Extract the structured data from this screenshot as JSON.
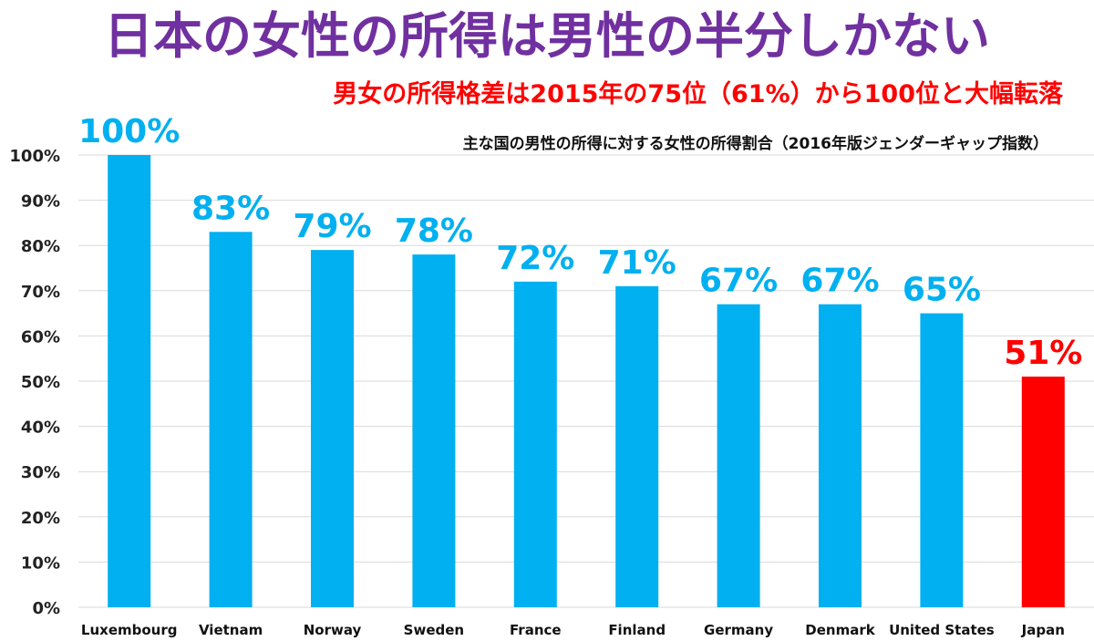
{
  "header": {
    "title": "日本の女性の所得は男性の半分しかない",
    "subtitle": "男女の所得格差は2015年の75位（61%）から100位と大幅転落",
    "note": "主な国の男性の所得に対する女性の所得割合（2016年版ジェンダーギャップ指数）"
  },
  "colors": {
    "title": "#7030a0",
    "subtitle": "#ff0000",
    "bar": "#00b0f0",
    "highlight": "#ff0000",
    "value_label": "#00b0f0",
    "highlight_label": "#ff0000",
    "grid": "#d9d9d9"
  },
  "chart_data": {
    "type": "bar",
    "title": "",
    "xlabel": "",
    "ylabel": "",
    "categories": [
      "Luxembourg",
      "Vietnam",
      "Norway",
      "Sweden",
      "France",
      "Finland",
      "Germany",
      "Denmark",
      "United States",
      "Japan"
    ],
    "values": [
      100,
      83,
      79,
      78,
      72,
      71,
      67,
      67,
      65,
      51
    ],
    "data_labels": [
      "100%",
      "83%",
      "79%",
      "78%",
      "72%",
      "71%",
      "67%",
      "67%",
      "65%",
      "51%"
    ],
    "highlight_category": "Japan",
    "ylim": [
      0,
      100
    ],
    "y_ticks": [
      0,
      10,
      20,
      30,
      40,
      50,
      60,
      70,
      80,
      90,
      100
    ],
    "y_tick_labels": [
      "0%",
      "10%",
      "20%",
      "30%",
      "40%",
      "50%",
      "60%",
      "70%",
      "80%",
      "90%",
      "100%"
    ],
    "grid": true,
    "legend": "none"
  }
}
